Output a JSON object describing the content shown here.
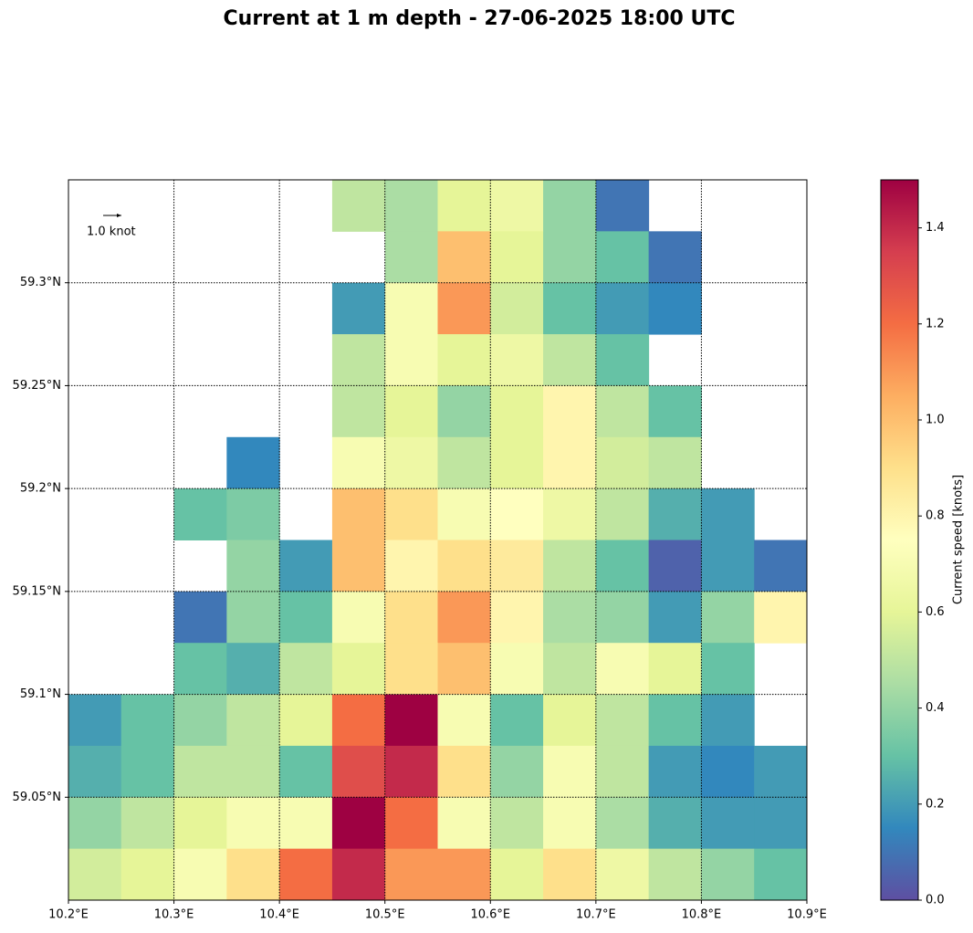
{
  "chart_data": {
    "type": "current-map",
    "title": "Current at 1 m depth - 27-06-2025 18:00 UTC",
    "xlim": [
      10.2,
      10.9
    ],
    "ylim": [
      59.0,
      59.35
    ],
    "xticks": [
      {
        "value": 10.2,
        "label": "10.2°E"
      },
      {
        "value": 10.3,
        "label": "10.3°E"
      },
      {
        "value": 10.4,
        "label": "10.4°E"
      },
      {
        "value": 10.5,
        "label": "10.5°E"
      },
      {
        "value": 10.6,
        "label": "10.6°E"
      },
      {
        "value": 10.7,
        "label": "10.7°E"
      },
      {
        "value": 10.8,
        "label": "10.8°E"
      },
      {
        "value": 10.9,
        "label": "10.9°E"
      }
    ],
    "yticks": [
      {
        "value": 59.05,
        "label": "59.05°N"
      },
      {
        "value": 59.1,
        "label": "59.1°N"
      },
      {
        "value": 59.15,
        "label": "59.15°N"
      },
      {
        "value": 59.2,
        "label": "59.2°N"
      },
      {
        "value": 59.25,
        "label": "59.25°N"
      },
      {
        "value": 59.3,
        "label": "59.3°N"
      }
    ],
    "grid": true,
    "speed": [
      [
        null,
        null,
        null,
        null,
        null,
        0.5,
        0.45,
        0.6,
        0.65,
        0.4,
        0.1,
        null,
        null,
        null
      ],
      [
        null,
        null,
        null,
        null,
        null,
        null,
        0.45,
        1.0,
        0.6,
        0.4,
        0.3,
        0.1,
        null,
        null
      ],
      [
        null,
        null,
        null,
        null,
        null,
        0.2,
        0.7,
        1.1,
        0.55,
        0.3,
        0.2,
        0.15,
        null,
        null
      ],
      [
        null,
        null,
        null,
        null,
        null,
        0.5,
        0.7,
        0.6,
        0.65,
        0.5,
        0.3,
        null,
        null,
        null
      ],
      [
        null,
        null,
        null,
        null,
        null,
        0.5,
        0.6,
        0.4,
        0.6,
        0.8,
        0.5,
        0.3,
        null,
        null
      ],
      [
        null,
        null,
        null,
        0.15,
        null,
        0.7,
        0.65,
        0.5,
        0.6,
        0.8,
        0.55,
        0.5,
        null,
        null
      ],
      [
        null,
        null,
        0.3,
        0.35,
        null,
        1.0,
        0.9,
        0.7,
        0.75,
        0.65,
        0.5,
        0.25,
        0.2,
        null
      ],
      [
        null,
        null,
        null,
        0.4,
        0.2,
        1.0,
        0.8,
        0.9,
        0.85,
        0.5,
        0.3,
        0.05,
        0.2,
        0.1
      ],
      [
        null,
        null,
        0.1,
        0.4,
        0.3,
        0.7,
        0.9,
        1.1,
        0.8,
        0.45,
        0.4,
        0.2,
        0.4,
        0.8
      ],
      [
        null,
        null,
        0.3,
        0.25,
        0.5,
        0.6,
        0.9,
        1.0,
        0.7,
        0.5,
        0.7,
        0.6,
        0.3,
        null
      ],
      [
        0.2,
        0.3,
        0.4,
        0.5,
        0.6,
        1.2,
        1.5,
        0.7,
        0.3,
        0.6,
        0.5,
        0.3,
        0.2,
        null
      ],
      [
        0.25,
        0.3,
        0.5,
        0.5,
        0.3,
        1.3,
        1.4,
        0.9,
        0.4,
        0.7,
        0.5,
        0.2,
        0.15,
        0.2
      ],
      [
        0.4,
        0.5,
        0.6,
        0.7,
        0.7,
        1.5,
        1.2,
        0.7,
        0.5,
        0.7,
        0.45,
        0.25,
        0.2,
        0.2
      ],
      [
        0.55,
        0.6,
        0.7,
        0.9,
        1.2,
        1.4,
        1.1,
        1.1,
        0.6,
        0.9,
        0.65,
        0.5,
        0.4,
        0.3
      ]
    ],
    "colormap": [
      "#5e4fa2",
      "#3288bd",
      "#66c2a5",
      "#abdda4",
      "#e6f598",
      "#ffffbf",
      "#fee08b",
      "#fdae61",
      "#f46d43",
      "#d53e4f",
      "#9e0142"
    ],
    "clim": [
      0,
      1.5
    ],
    "colorbar_ticks": [
      {
        "value": 0,
        "label": "0.0"
      },
      0.2,
      0.4,
      0.6,
      0.8,
      {
        "value": 1,
        "label": "1.0"
      },
      1.2,
      1.4
    ],
    "colorbar_label": "Current speed [knots]",
    "quiver_key": {
      "value": 1,
      "label": "1.0 knot"
    }
  }
}
